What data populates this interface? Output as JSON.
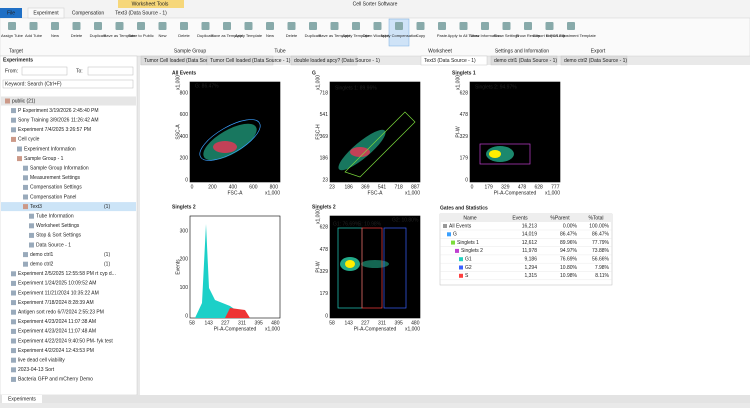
{
  "title_bar": {
    "context_tab": "Worksheet Tools",
    "app_title": "Cell Sorter Software"
  },
  "tabs": [
    "File",
    "Experiment",
    "Compensation",
    "Text3 (Data Source - 1)"
  ],
  "ribbon": {
    "buttons": [
      "Assign Tube",
      "Add Tube",
      "New",
      "Delete",
      "Duplicate",
      "Save as Template",
      "Save to Public",
      "New",
      "Delete",
      "Duplicate",
      "Save as Template",
      "Apply Template",
      "New",
      "Delete",
      "Duplicate",
      "Save as Template",
      "Apply Template",
      "Open Worksheet",
      "Apply Compensation",
      "Copy",
      "Paste",
      "Apply to All Tubes",
      "Show Information",
      "Show Settings",
      "Show Results",
      "Export to FCS File",
      "Export Adjustment Template"
    ],
    "groups": [
      "Target",
      "Sample Group",
      "Tube",
      "Worksheet",
      "Settings and Information",
      "Export"
    ]
  },
  "left_panel": {
    "header": "Experiments",
    "from_label": "From:",
    "to_label": "To:",
    "keyword": "Keyword: Search (Ctrl+F)",
    "tree": [
      {
        "label": "public (21)",
        "children": [
          {
            "label": "P Experiment 3/19/2026 2:45:40 PM"
          },
          {
            "label": "Sony Training 3/9/2026 11:26:42 AM"
          },
          {
            "label": "Experiment 7/4/2025 3:26:57 PM"
          },
          {
            "label": "Cell cycle",
            "children": [
              {
                "label": "Experiment Information"
              },
              {
                "label": "Sample Group - 1",
                "children": [
                  {
                    "label": "Sample Group Information"
                  },
                  {
                    "label": "Measurement Settings"
                  },
                  {
                    "label": "Compensation Settings"
                  },
                  {
                    "label": "Compensation Panel"
                  },
                  {
                    "label": "Text3",
                    "count": "(1)",
                    "children": [
                      {
                        "label": "Tube Information"
                      },
                      {
                        "label": "Worksheet Settings"
                      },
                      {
                        "label": "Stop & Sort Settings"
                      },
                      {
                        "label": "Data Source - 1"
                      }
                    ]
                  },
                  {
                    "label": "demo ctrl1",
                    "count": "(1)"
                  },
                  {
                    "label": "demo ctrl2",
                    "count": "(1)"
                  }
                ]
              }
            ]
          },
          {
            "label": "Experiment 2/5/2025 12:55:58 PM rt cyp d..."
          },
          {
            "label": "Experiment 1/24/2025 10:09:52 AM"
          },
          {
            "label": "Experiment 11/21/2024 10:35:22 AM"
          },
          {
            "label": "Experiment 7/18/2024 8:28:39 AM"
          },
          {
            "label": "Antigen sort redo 6/7/2024 2:55:23 PM"
          },
          {
            "label": "Experiment 4/23/2024 11:07:38 AM"
          },
          {
            "label": "Experiment 4/23/2024 11:07:48 AM"
          },
          {
            "label": "Experiment 4/22/2024 9:40:50 PM- fyk test"
          },
          {
            "label": "Experiment 4/2/2024 12:43:53 PM"
          },
          {
            "label": "live dead cell viability"
          },
          {
            "label": "2023-04-13 Sort"
          },
          {
            "label": "Bacteria GFP and mCherry Demo"
          }
        ]
      }
    ],
    "bottom_tab": "Experiments"
  },
  "doc_tabs": [
    "Tumor Cell loaded (Data Source - 1)",
    "Tumor Cell loaded (Data Source - 1)",
    "double loaded apcy? (Data Source - 1)",
    "Text3 (Data Source - 1)",
    "demo ctrl1 (Data Source - 1)",
    "demo ctrl2 (Data Source - 1)"
  ],
  "plots": [
    {
      "title": "All Events",
      "x_label": "FSC-A",
      "y_label": "SSC-A",
      "x_ticks": [
        "0",
        "200",
        "400",
        "600",
        "800"
      ],
      "y_ticks": [
        "0",
        "200",
        "400",
        "600",
        "800"
      ],
      "x_unit": "x1,000",
      "y_unit": "x1,000",
      "gates": [
        {
          "label": "G: 86.47%",
          "color": "#3aa0ff"
        }
      ]
    },
    {
      "title": "G",
      "x_label": "FSC-A",
      "y_label": "FSC-H",
      "x_ticks": [
        "23",
        "186",
        "369",
        "541",
        "718",
        "887"
      ],
      "y_ticks": [
        "23",
        "186",
        "369",
        "541",
        "718"
      ],
      "x_unit": "x1,000",
      "y_unit": "x1,000",
      "gates": [
        {
          "label": "Singlets 1: 89.96%",
          "color": "#7cdc3c"
        }
      ]
    },
    {
      "title": "Singlets 1",
      "x_label": "PI-A-Compensated",
      "y_label": "PI-W",
      "x_ticks": [
        "0",
        "179",
        "329",
        "478",
        "628",
        "777"
      ],
      "y_ticks": [
        "0",
        "179",
        "329",
        "478",
        "628"
      ],
      "x_unit": "x1,000",
      "y_unit": "x1,000",
      "gates": [
        {
          "label": "Singlets 2: 94.97%",
          "color": "#c040d0"
        }
      ]
    },
    {
      "title": "Singlets 2",
      "x_label": "PI-A-Compensated",
      "y_label": "Events",
      "x_ticks": [
        "58",
        "143",
        "227",
        "311",
        "395",
        "480"
      ],
      "y_ticks": [
        "0",
        "100",
        "200",
        "300"
      ],
      "x_unit": "x1,000",
      "y_unit": "",
      "gates": []
    },
    {
      "title": "Singlets 2",
      "x_label": "PI-A-Compensated",
      "y_label": "PI-W",
      "x_ticks": [
        "58",
        "143",
        "227",
        "311",
        "395",
        "480"
      ],
      "y_ticks": [
        "0",
        "179",
        "329",
        "478",
        "628"
      ],
      "x_unit": "x1,000",
      "y_unit": "x1,000",
      "gates": [
        {
          "label": "G1: 76.69%",
          "color": "#22d0c0"
        },
        {
          "label": "S: 10.98%",
          "color": "#ff4040"
        },
        {
          "label": "G2: 10.80%",
          "color": "#3a60ff"
        }
      ]
    }
  ],
  "stats": {
    "title": "Gates and Statistics",
    "columns": [
      "Name",
      "Events",
      "%Parent",
      "%Total"
    ],
    "rows": [
      [
        "All Events",
        "16,213",
        "0.00%",
        "100.00%"
      ],
      [
        "G",
        "14,019",
        "86.47%",
        "86.47%"
      ],
      [
        "Singlets 1",
        "12,612",
        "89.96%",
        "77.79%"
      ],
      [
        "Singlets 2",
        "11,978",
        "94.97%",
        "73.88%"
      ],
      [
        "G1",
        "9,186",
        "76.69%",
        "56.66%"
      ],
      [
        "G2",
        "1,294",
        "10.80%",
        "7.98%"
      ],
      [
        "S",
        "1,315",
        "10.98%",
        "8.11%"
      ]
    ]
  }
}
